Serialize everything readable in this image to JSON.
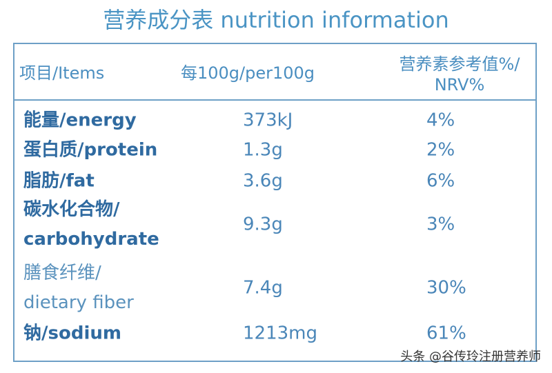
{
  "title": "营养成分表 nutrition information",
  "table": {
    "header": {
      "item": "项目/Items",
      "per100g": "每100g/per100g",
      "nrv": [
        "营养素参考值%/",
        "NRV%"
      ]
    },
    "rows": [
      {
        "item": [
          "能量/energy"
        ],
        "per100g": "373kJ",
        "nrv": "4%"
      },
      {
        "item": [
          "蛋白质/protein"
        ],
        "per100g": "1.3g",
        "nrv": "2%"
      },
      {
        "item": [
          "脂肪/fat"
        ],
        "per100g": "3.6g",
        "nrv": "6%"
      },
      {
        "item": [
          "碳水化合物/",
          "carbohydrate"
        ],
        "per100g": "9.3g",
        "nrv": "3%"
      },
      {
        "item": [
          "膳食纤维/",
          "dietary fiber"
        ],
        "per100g": "7.4g",
        "nrv": "30%"
      },
      {
        "item": [
          "钠/sodium"
        ],
        "per100g": "1213mg",
        "nrv": "61%"
      }
    ]
  },
  "watermark": "头条 @谷传玲注册营养师"
}
